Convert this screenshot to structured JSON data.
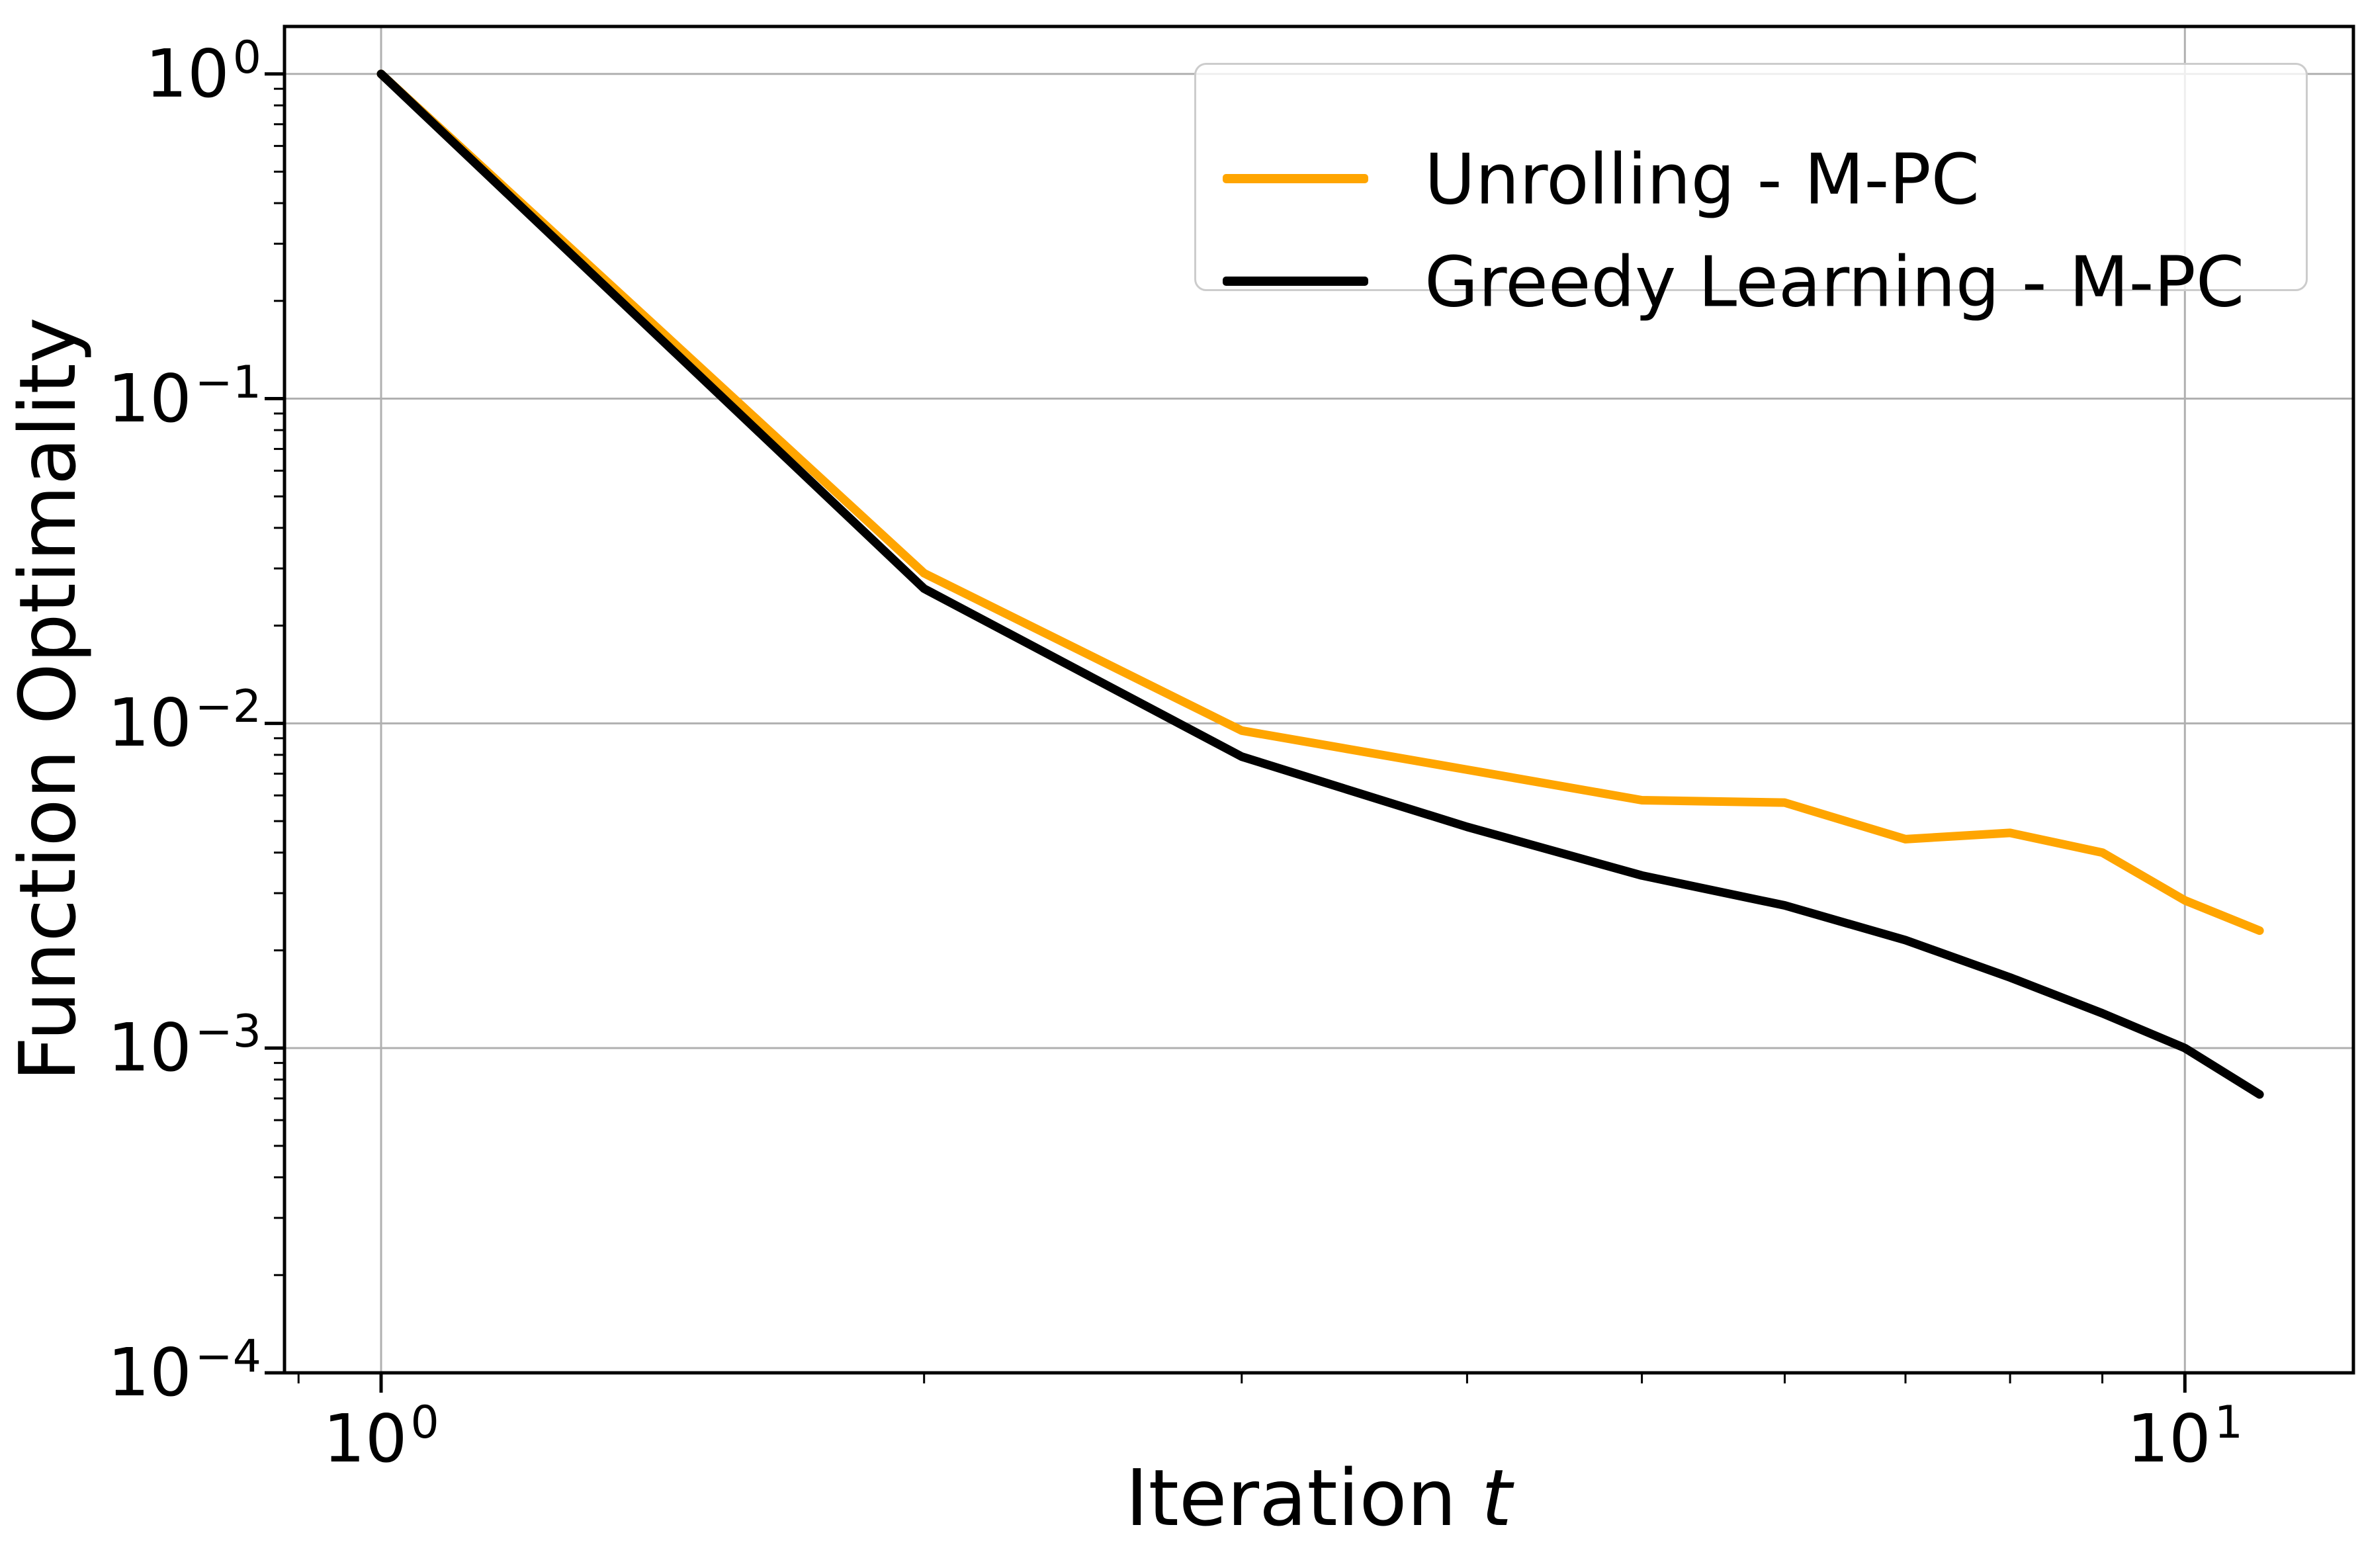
{
  "figure": {
    "background": "#ffffff",
    "text_color": "#000000",
    "spine_color": "#000000"
  },
  "chart_data": {
    "type": "line",
    "title": "",
    "xlabel": "Iteration t",
    "xlabel_main": "Iteration ",
    "xlabel_italic": "t",
    "ylabel": "Function Optimality",
    "x_scale": "log",
    "y_scale": "log",
    "xlim": [
      0.884,
      12.4
    ],
    "ylim": [
      0.0001,
      1.4
    ],
    "grid": true,
    "grid_color": "#b0b0b0",
    "legend_position": "upper right",
    "x": [
      1,
      2,
      3,
      4,
      5,
      6,
      7,
      8,
      9,
      10,
      11
    ],
    "series": [
      {
        "name": "Unrolling - M-PC",
        "color": "#FFA500",
        "values": [
          1.0,
          0.029,
          0.0095,
          0.0072,
          0.0058,
          0.0057,
          0.0044,
          0.0046,
          0.004,
          0.00285,
          0.0023
        ]
      },
      {
        "name": "Greedy Learning - M-PC",
        "color": "#000000",
        "values": [
          1.0,
          0.026,
          0.0079,
          0.0048,
          0.0034,
          0.00275,
          0.00215,
          0.00165,
          0.00128,
          0.001,
          0.00072
        ]
      }
    ],
    "x_major_ticks": [
      1,
      10
    ],
    "x_tick_labels": [
      {
        "base": "10",
        "exp": "0"
      },
      {
        "base": "10",
        "exp": "1"
      }
    ],
    "x_minor_ticks": [
      0.9,
      2,
      3,
      4,
      5,
      6,
      7,
      8,
      9
    ],
    "y_major_ticks": [
      1,
      0.1,
      0.01,
      0.001,
      0.0001
    ],
    "y_tick_labels": [
      {
        "base": "10",
        "exp": "0"
      },
      {
        "base": "10",
        "exp": "−1"
      },
      {
        "base": "10",
        "exp": "−2"
      },
      {
        "base": "10",
        "exp": "−3"
      },
      {
        "base": "10",
        "exp": "−4"
      }
    ],
    "y_minor_ticks": [
      0.9,
      0.8,
      0.7,
      0.6,
      0.5,
      0.4,
      0.3,
      0.2,
      0.09,
      0.08,
      0.07,
      0.06,
      0.05,
      0.04,
      0.03,
      0.02,
      0.009,
      0.008,
      0.007,
      0.006,
      0.005,
      0.004,
      0.003,
      0.002,
      0.0009,
      0.0008,
      0.0007,
      0.0006,
      0.0005,
      0.0004,
      0.0003,
      0.0002
    ]
  }
}
